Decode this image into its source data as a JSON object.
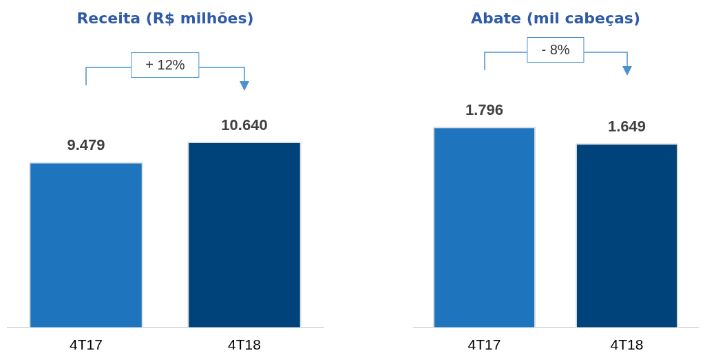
{
  "chart_data": [
    {
      "type": "bar",
      "title": "Receita (R$ milhões)",
      "categories": [
        "4T17",
        "4T18"
      ],
      "values": [
        9479,
        10640
      ],
      "colors": [
        "#1f75bd",
        "#00437b"
      ],
      "value_labels": [
        "9.479",
        "10.640"
      ],
      "annotations": [
        "+ 12%"
      ]
    },
    {
      "type": "bar",
      "title": "Abate (mil cabeças)",
      "categories": [
        "4T17",
        "4T18"
      ],
      "values": [
        1796,
        1649
      ],
      "colors": [
        "#1f75bd",
        "#00437b"
      ],
      "value_labels": [
        "1.796",
        "1.649"
      ],
      "annotations": [
        "- 8%"
      ]
    }
  ]
}
